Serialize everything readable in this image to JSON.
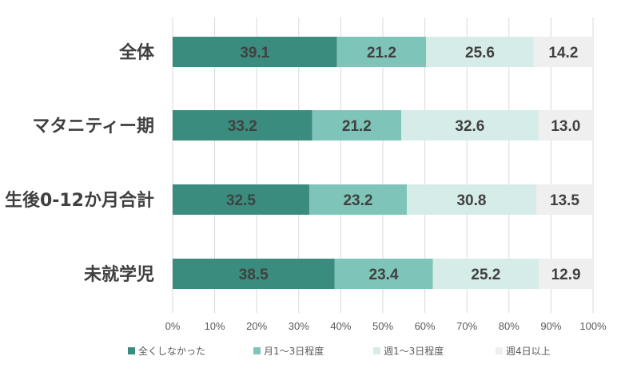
{
  "chart_data": {
    "type": "bar",
    "orientation": "horizontal",
    "stacked": true,
    "percent_stacked": true,
    "title": "",
    "categories": [
      "全体",
      "マタニティー期",
      "生後0-12か月合計",
      "未就学児"
    ],
    "series": [
      {
        "name": "全くしなかった",
        "color": "#3a8c7e",
        "values": [
          39.1,
          33.2,
          32.5,
          38.5
        ]
      },
      {
        "name": "月1～3日程度",
        "color": "#7fc4b8",
        "values": [
          21.2,
          21.2,
          23.2,
          23.4
        ]
      },
      {
        "name": "週1～3日程度",
        "color": "#d6ece8",
        "values": [
          25.6,
          32.6,
          30.8,
          25.2
        ]
      },
      {
        "name": "週4日以上",
        "color": "#efefef",
        "values": [
          14.2,
          13.0,
          13.5,
          12.9
        ]
      }
    ],
    "data_labels": [
      [
        "39.1",
        "21.2",
        "25.6",
        "14.2"
      ],
      [
        "33.2",
        "21.2",
        "32.6",
        "13.0"
      ],
      [
        "32.5",
        "23.2",
        "30.8",
        "13.5"
      ],
      [
        "38.5",
        "23.4",
        "25.2",
        "12.9"
      ]
    ],
    "xticks": [
      "0%",
      "10%",
      "20%",
      "30%",
      "40%",
      "50%",
      "60%",
      "70%",
      "80%",
      "90%",
      "100%"
    ],
    "xlim": [
      0,
      100
    ],
    "grid": true,
    "legend_position": "bottom"
  }
}
